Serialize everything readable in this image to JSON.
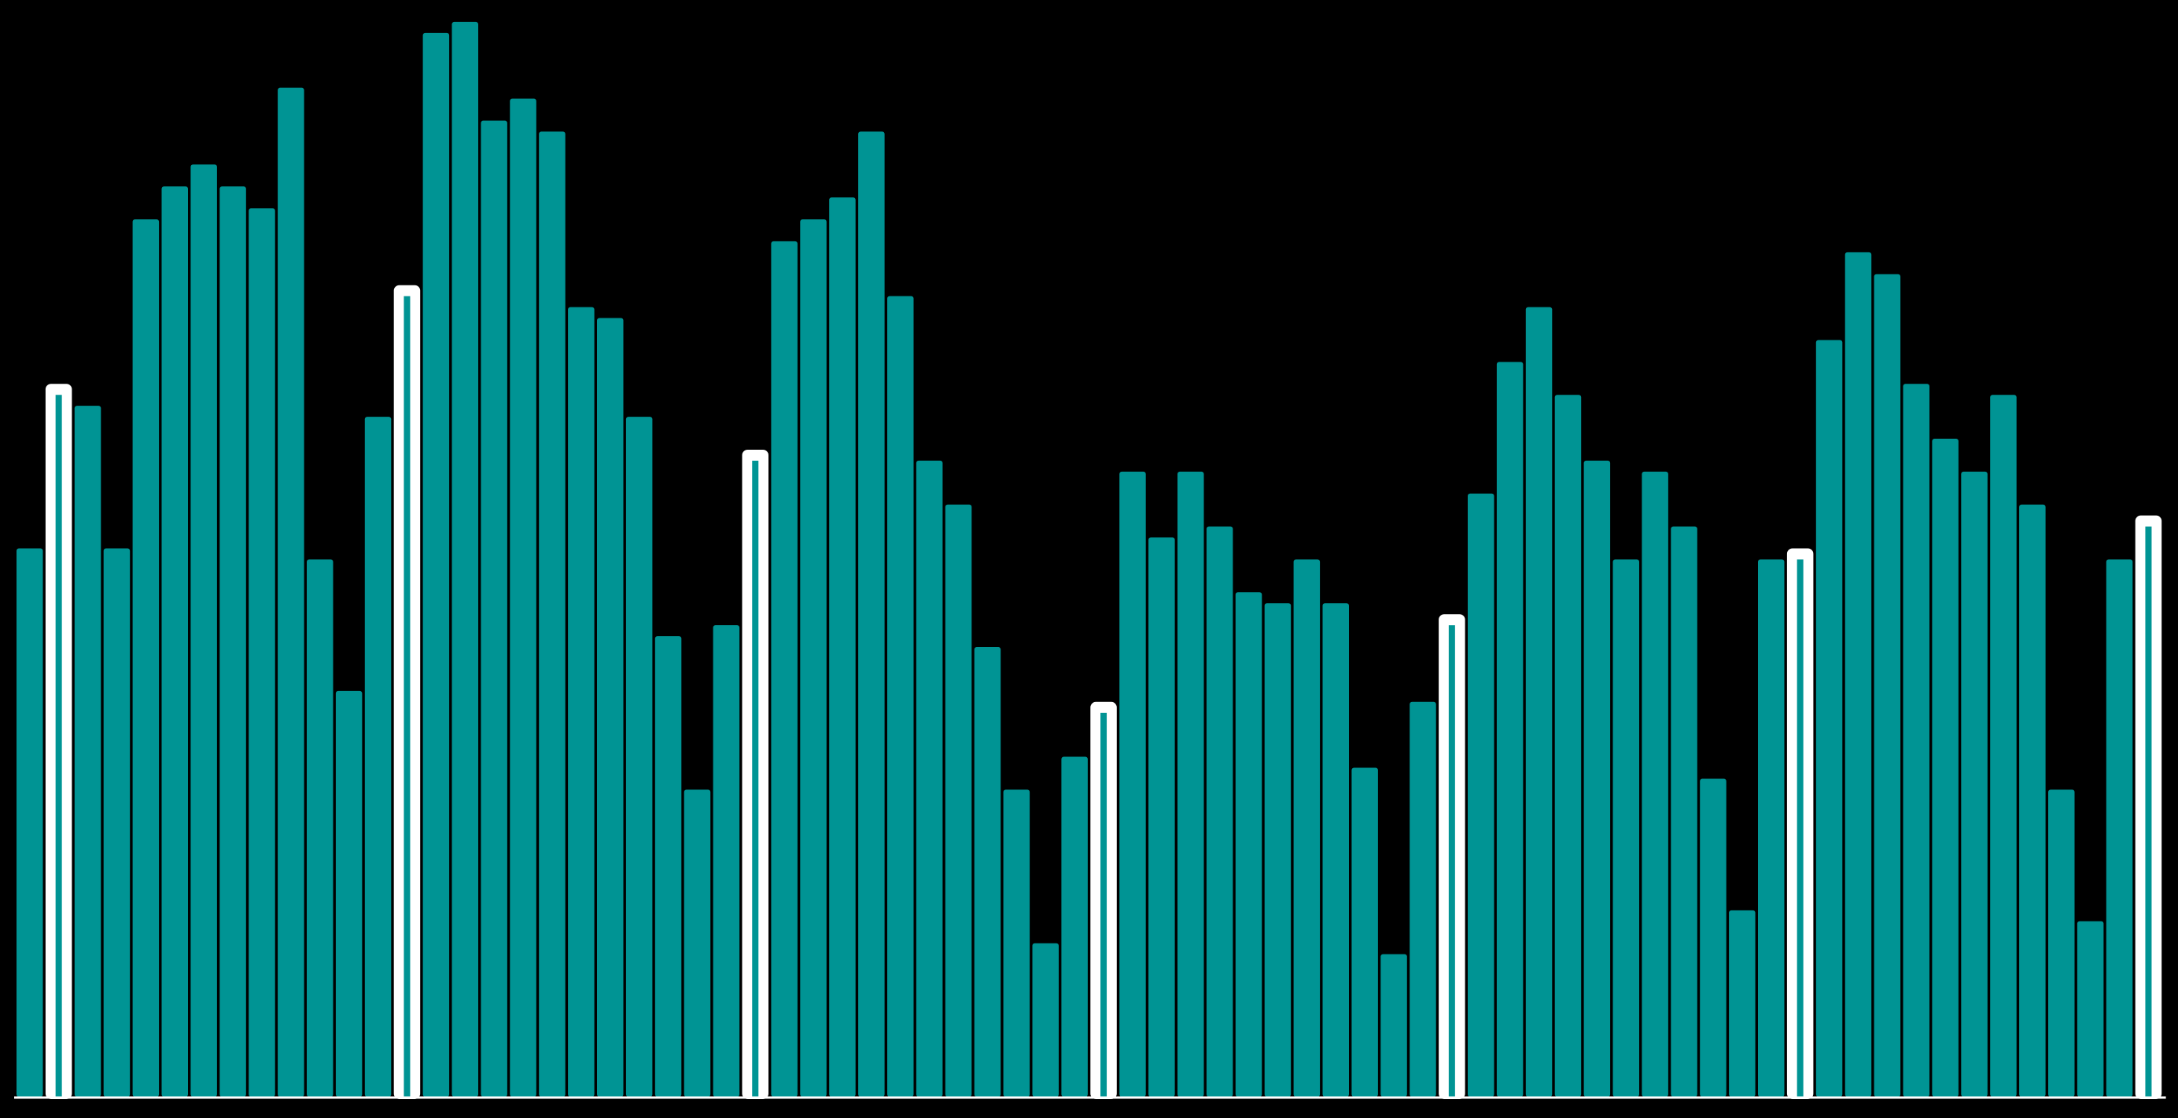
{
  "chart_data": {
    "type": "bar",
    "values": [
      50,
      65,
      63,
      50,
      80,
      83,
      85,
      83,
      81,
      92,
      49,
      37,
      62,
      74,
      97,
      98,
      89,
      91,
      88,
      72,
      71,
      62,
      42,
      28,
      43,
      59,
      78,
      80,
      82,
      88,
      73,
      58,
      54,
      41,
      28,
      14,
      31,
      36,
      57,
      51,
      57,
      52,
      46,
      45,
      49,
      45,
      30,
      13,
      36,
      44,
      55,
      67,
      72,
      64,
      58,
      49,
      57,
      52,
      29,
      17,
      49,
      50,
      69,
      77,
      75,
      65,
      60,
      57,
      64,
      54,
      28,
      16,
      49,
      53
    ],
    "color": "#009494",
    "highlight_color": "#ffffff",
    "highlighted": [
      1,
      13,
      25,
      37,
      49,
      61,
      73
    ],
    "ylim": [
      0,
      100
    ],
    "background": "#000000"
  }
}
